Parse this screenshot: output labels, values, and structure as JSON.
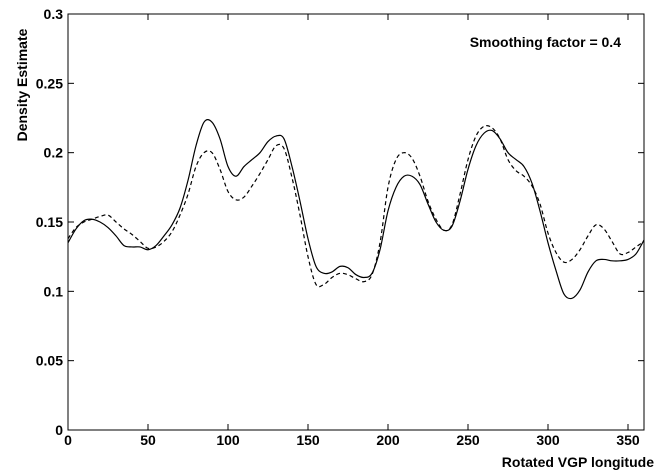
{
  "chart_data": {
    "type": "line",
    "title": "",
    "xlabel": "Rotated VGP longitude",
    "ylabel": "Density Estimate",
    "xlim": [
      0,
      360
    ],
    "ylim": [
      0,
      0.3
    ],
    "xticks": [
      0,
      50,
      100,
      150,
      200,
      250,
      300,
      350
    ],
    "yticks": [
      0,
      0.05,
      0.1,
      0.15,
      0.2,
      0.25,
      0.3
    ],
    "ytick_labels": [
      "0",
      "0.05",
      "0.1",
      "0.15",
      "0.2",
      "0.25",
      "0.3"
    ],
    "xtick_labels": [
      "0",
      "50",
      "100",
      "150",
      "200",
      "250",
      "300",
      "350"
    ],
    "grid": false,
    "legend": "none",
    "annotation": "Smoothing factor = 0.4",
    "series": [
      {
        "style": "solid",
        "color": "#000000",
        "x": [
          0,
          5,
          10,
          15,
          20,
          25,
          30,
          35,
          40,
          45,
          50,
          55,
          60,
          65,
          70,
          75,
          80,
          85,
          90,
          95,
          100,
          105,
          110,
          115,
          120,
          125,
          130,
          135,
          140,
          145,
          150,
          155,
          160,
          165,
          170,
          175,
          180,
          185,
          190,
          195,
          200,
          205,
          210,
          215,
          220,
          225,
          230,
          235,
          240,
          245,
          250,
          255,
          260,
          265,
          270,
          275,
          280,
          285,
          290,
          295,
          300,
          305,
          310,
          315,
          320,
          325,
          330,
          335,
          340,
          345,
          350,
          355,
          360
        ],
        "y": [
          0.135,
          0.145,
          0.151,
          0.152,
          0.15,
          0.146,
          0.14,
          0.133,
          0.132,
          0.132,
          0.13,
          0.133,
          0.14,
          0.148,
          0.16,
          0.18,
          0.205,
          0.222,
          0.222,
          0.21,
          0.19,
          0.183,
          0.19,
          0.195,
          0.2,
          0.208,
          0.212,
          0.21,
          0.19,
          0.165,
          0.138,
          0.118,
          0.113,
          0.114,
          0.118,
          0.117,
          0.112,
          0.11,
          0.113,
          0.13,
          0.158,
          0.175,
          0.183,
          0.183,
          0.177,
          0.163,
          0.15,
          0.144,
          0.147,
          0.165,
          0.188,
          0.205,
          0.214,
          0.216,
          0.21,
          0.2,
          0.195,
          0.19,
          0.178,
          0.158,
          0.135,
          0.115,
          0.098,
          0.095,
          0.101,
          0.114,
          0.122,
          0.123,
          0.122,
          0.122,
          0.123,
          0.127,
          0.137
        ]
      },
      {
        "style": "dashed",
        "color": "#000000",
        "x": [
          0,
          5,
          10,
          15,
          20,
          25,
          30,
          35,
          40,
          45,
          50,
          55,
          60,
          65,
          70,
          75,
          80,
          85,
          90,
          95,
          100,
          105,
          110,
          115,
          120,
          125,
          130,
          135,
          140,
          145,
          150,
          155,
          160,
          165,
          170,
          175,
          180,
          185,
          190,
          195,
          200,
          205,
          210,
          215,
          220,
          225,
          230,
          235,
          240,
          245,
          250,
          255,
          260,
          265,
          270,
          275,
          280,
          285,
          290,
          295,
          300,
          305,
          310,
          315,
          320,
          325,
          330,
          335,
          340,
          345,
          350,
          355,
          360
        ],
        "y": [
          0.138,
          0.146,
          0.15,
          0.152,
          0.154,
          0.155,
          0.15,
          0.145,
          0.141,
          0.136,
          0.131,
          0.132,
          0.136,
          0.143,
          0.155,
          0.17,
          0.19,
          0.2,
          0.2,
          0.188,
          0.172,
          0.166,
          0.168,
          0.176,
          0.185,
          0.195,
          0.205,
          0.203,
          0.182,
          0.155,
          0.125,
          0.105,
          0.105,
          0.11,
          0.113,
          0.112,
          0.109,
          0.107,
          0.112,
          0.135,
          0.175,
          0.195,
          0.2,
          0.196,
          0.183,
          0.165,
          0.152,
          0.144,
          0.148,
          0.17,
          0.195,
          0.212,
          0.219,
          0.218,
          0.21,
          0.195,
          0.187,
          0.183,
          0.176,
          0.163,
          0.142,
          0.128,
          0.121,
          0.123,
          0.13,
          0.14,
          0.148,
          0.145,
          0.136,
          0.127,
          0.128,
          0.132,
          0.136
        ]
      }
    ]
  }
}
